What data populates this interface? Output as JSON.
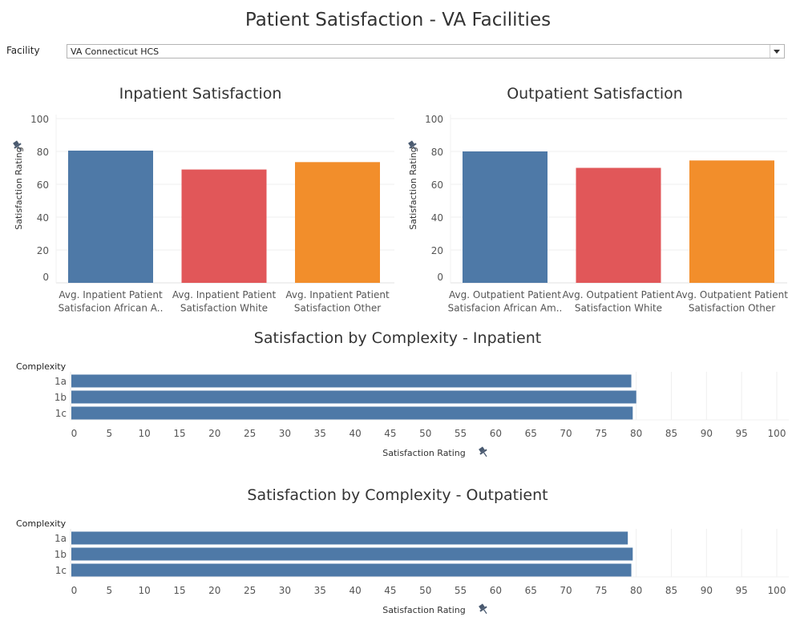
{
  "header": {
    "title": "Patient Satisfaction - VA Facilities"
  },
  "filter": {
    "label": "Facility",
    "value": "VA Connecticut HCS"
  },
  "colors": {
    "blue": "#4e79a7",
    "red": "#e15759",
    "orange": "#f28e2b",
    "pin": "#4a5a70"
  },
  "chart_data": [
    {
      "type": "bar",
      "title": "Inpatient Satisfaction",
      "ylabel": "Satisfaction Rating",
      "ylim": [
        0,
        100
      ],
      "yticks": [
        "0",
        "20",
        "40",
        "60",
        "80",
        "100"
      ],
      "categories": [
        [
          "Avg. Inpatient Patient",
          "Satisfacion African A.."
        ],
        [
          "Avg. Inpatient Patient",
          "Satisfaction White"
        ],
        [
          "Avg. Inpatient Patient",
          "Satisfaction Other"
        ]
      ],
      "values": [
        80.5,
        69,
        73.5
      ]
    },
    {
      "type": "bar",
      "title": "Outpatient Satisfaction",
      "ylabel": "Satisfaction Rating",
      "ylim": [
        0,
        100
      ],
      "yticks": [
        "0",
        "20",
        "40",
        "60",
        "80",
        "100"
      ],
      "categories": [
        [
          "Avg. Outpatient Patient",
          "Satisfacion African Am.."
        ],
        [
          "Avg. Outpatient Patient",
          "Satisfaction White"
        ],
        [
          "Avg. Outpatient Patient",
          "Satisfaction Other"
        ]
      ],
      "values": [
        80,
        70,
        74.5
      ]
    },
    {
      "type": "bar",
      "orientation": "horizontal",
      "title": "Satisfaction by Complexity - Inpatient",
      "category_header": "Complexity",
      "xlabel": "Satisfaction Rating",
      "xlim": [
        0,
        100
      ],
      "xticks": [
        "0",
        "5",
        "10",
        "15",
        "20",
        "25",
        "30",
        "35",
        "40",
        "45",
        "50",
        "55",
        "60",
        "65",
        "70",
        "75",
        "80",
        "85",
        "90",
        "95",
        "100"
      ],
      "categories": [
        "1a",
        "1b",
        "1c"
      ],
      "values": [
        79.3,
        80,
        79.5
      ]
    },
    {
      "type": "bar",
      "orientation": "horizontal",
      "title": "Satisfaction by Complexity - Outpatient",
      "category_header": "Complexity",
      "xlabel": "Satisfaction Rating",
      "xlim": [
        0,
        100
      ],
      "xticks": [
        "0",
        "5",
        "10",
        "15",
        "20",
        "25",
        "30",
        "35",
        "40",
        "45",
        "50",
        "55",
        "60",
        "65",
        "70",
        "75",
        "80",
        "85",
        "90",
        "95",
        "100"
      ],
      "categories": [
        "1a",
        "1b",
        "1c"
      ],
      "values": [
        78.8,
        79.5,
        79.3
      ]
    }
  ]
}
